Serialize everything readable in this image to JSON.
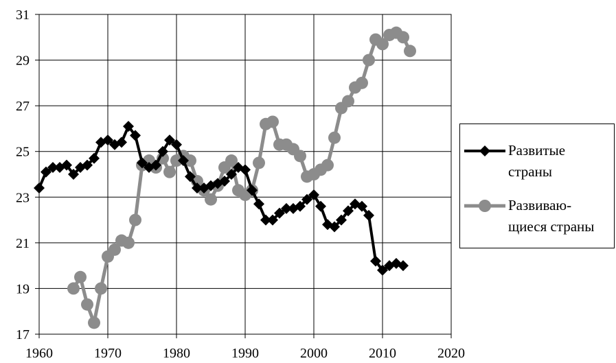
{
  "chart_data": {
    "type": "line",
    "title": "",
    "xlabel": "",
    "ylabel": "",
    "xlim": [
      1960,
      2020
    ],
    "ylim": [
      17,
      31
    ],
    "x_ticks": [
      1960,
      1970,
      1980,
      1990,
      2000,
      2010,
      2020
    ],
    "y_ticks": [
      17,
      19,
      21,
      23,
      25,
      27,
      29,
      31
    ],
    "x_tick_labels": [
      "1960",
      "1970",
      "1980",
      "1990",
      "2000",
      "2010",
      "2020"
    ],
    "y_tick_labels": [
      "17",
      "19",
      "21",
      "23",
      "25",
      "27",
      "29",
      "31"
    ],
    "grid": true,
    "legend_position": "right",
    "series": [
      {
        "name": "Развитые страны",
        "color": "#000000",
        "marker": "diamond",
        "x": [
          1960,
          1961,
          1962,
          1963,
          1964,
          1965,
          1966,
          1967,
          1968,
          1969,
          1970,
          1971,
          1972,
          1973,
          1974,
          1975,
          1976,
          1977,
          1978,
          1979,
          1980,
          1981,
          1982,
          1983,
          1984,
          1985,
          1986,
          1987,
          1988,
          1989,
          1990,
          1991,
          1992,
          1993,
          1994,
          1995,
          1996,
          1997,
          1998,
          1999,
          2000,
          2001,
          2002,
          2003,
          2004,
          2005,
          2006,
          2007,
          2008,
          2009,
          2010,
          2011,
          2012,
          2013
        ],
        "y": [
          23.4,
          24.1,
          24.3,
          24.3,
          24.4,
          24.0,
          24.3,
          24.4,
          24.7,
          25.4,
          25.5,
          25.3,
          25.4,
          26.1,
          25.7,
          24.5,
          24.3,
          24.4,
          25.0,
          25.5,
          25.3,
          24.6,
          23.9,
          23.4,
          23.4,
          23.5,
          23.6,
          23.7,
          24.0,
          24.3,
          24.2,
          23.3,
          22.7,
          22.0,
          22.0,
          22.3,
          22.5,
          22.5,
          22.6,
          22.9,
          23.1,
          22.6,
          21.8,
          21.7,
          22.0,
          22.4,
          22.7,
          22.6,
          22.2,
          20.2,
          19.8,
          20.0,
          20.1,
          20.0
        ]
      },
      {
        "name": "Развиваю-щиеся страны",
        "color": "#8c8c8c",
        "marker": "circle",
        "x": [
          1965,
          1966,
          1967,
          1968,
          1969,
          1970,
          1971,
          1972,
          1973,
          1974,
          1975,
          1976,
          1977,
          1978,
          1979,
          1980,
          1981,
          1982,
          1983,
          1984,
          1985,
          1986,
          1987,
          1988,
          1989,
          1990,
          1991,
          1992,
          1993,
          1994,
          1995,
          1996,
          1997,
          1998,
          1999,
          2000,
          2001,
          2002,
          2003,
          2004,
          2005,
          2006,
          2007,
          2008,
          2009,
          2010,
          2011,
          2012,
          2013,
          2014
        ],
        "y": [
          19.0,
          19.5,
          18.3,
          17.5,
          19.0,
          20.4,
          20.7,
          21.1,
          21.0,
          22.0,
          24.4,
          24.6,
          24.3,
          24.7,
          24.1,
          24.6,
          24.8,
          24.6,
          23.7,
          23.3,
          22.9,
          23.5,
          24.3,
          24.6,
          23.3,
          23.1,
          23.3,
          24.5,
          26.2,
          26.3,
          25.3,
          25.3,
          25.1,
          24.8,
          23.9,
          24.0,
          24.2,
          24.4,
          25.6,
          26.9,
          27.2,
          27.8,
          28.0,
          29.0,
          29.9,
          29.7,
          30.1,
          30.2,
          30.0,
          29.4
        ]
      }
    ]
  },
  "legend": {
    "items": [
      {
        "label_line1": "Развитые",
        "label_line2": "страны"
      },
      {
        "label_line1": "Развиваю-",
        "label_line2": "щиеся страны"
      }
    ]
  }
}
